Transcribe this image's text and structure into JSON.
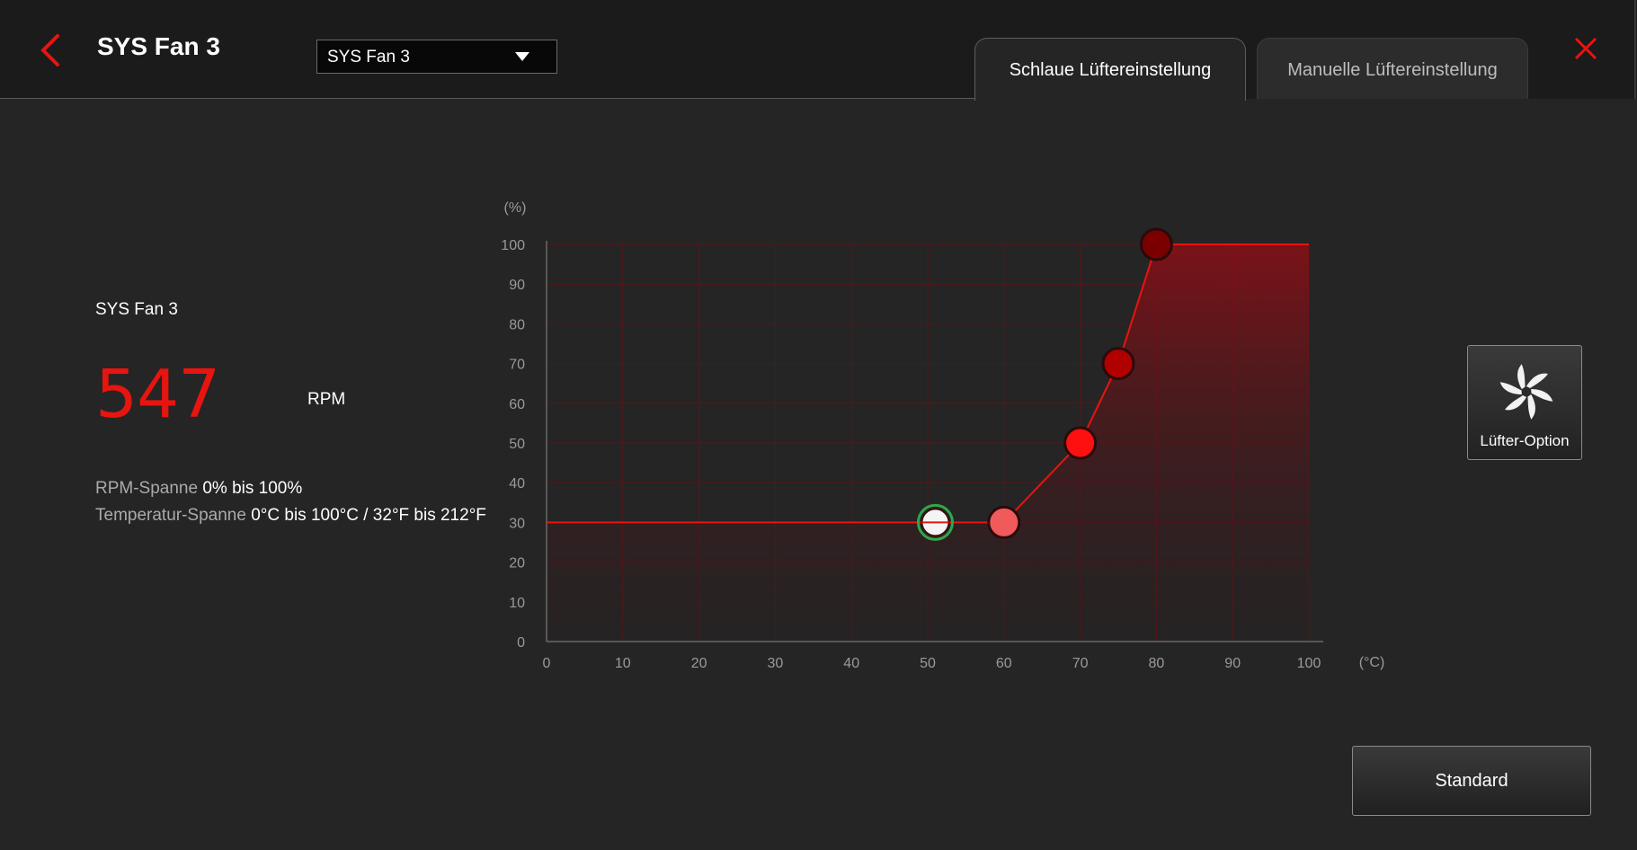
{
  "header": {
    "title": "SYS Fan 3",
    "dropdown_value": "SYS Fan 3",
    "tabs": [
      {
        "label": "Schlaue Lüftereinstellung",
        "active": true
      },
      {
        "label": "Manuelle Lüftereinstellung",
        "active": false
      }
    ]
  },
  "status": {
    "fan_name": "SYS Fan 3",
    "rpm_value": "547",
    "rpm_unit": "RPM",
    "rpm_range_label": "RPM-Spanne",
    "rpm_range_value": "0% bis 100%",
    "temp_range_label": "Temperatur-Spanne",
    "temp_range_value": "0°C bis 100°C / 32°F bis 212°F"
  },
  "buttons": {
    "fan_option_label": "Lüfter-Option",
    "standard_label": "Standard"
  },
  "colors": {
    "accent": "#e8140f",
    "background": "#252525",
    "header": "#1b1b1b"
  },
  "chart_data": {
    "type": "line",
    "title": "",
    "xlabel": "(°C)",
    "ylabel": "(%)",
    "xlim": [
      0,
      100
    ],
    "ylim": [
      0,
      100
    ],
    "x_ticks": [
      0,
      10,
      20,
      30,
      40,
      50,
      60,
      70,
      80,
      90,
      100
    ],
    "y_ticks": [
      0,
      10,
      20,
      30,
      40,
      50,
      60,
      70,
      80,
      90,
      100
    ],
    "grid": true,
    "curve": [
      [
        0,
        30
      ],
      [
        60,
        30
      ],
      [
        70,
        50
      ],
      [
        75,
        70
      ],
      [
        80,
        100
      ],
      [
        100,
        100
      ]
    ],
    "control_points": [
      {
        "x": 60,
        "y": 30,
        "color": "#f05a5a"
      },
      {
        "x": 70,
        "y": 50,
        "color": "#ff1010"
      },
      {
        "x": 75,
        "y": 70,
        "color": "#b00000"
      },
      {
        "x": 80,
        "y": 100,
        "color": "#7a0000"
      }
    ],
    "current_point": {
      "x": 51,
      "y": 30
    }
  }
}
